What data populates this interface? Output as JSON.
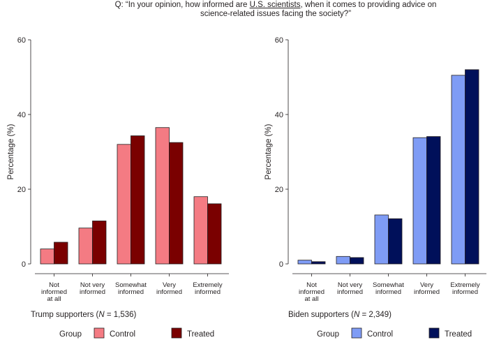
{
  "question": {
    "prefix": "Q: “In your opinion, how informed are ",
    "emphasis": "U.S. scientists",
    "suffix": ", when it comes to providing advice on science-related issues facing the society?”"
  },
  "legend": {
    "title": "Group",
    "control_label": "Control",
    "treated_label": "Treated"
  },
  "colors": {
    "trump_control": "#f47b83",
    "trump_treated": "#7a0000",
    "biden_control": "#7f9cf5",
    "biden_treated": "#00105a"
  },
  "chart_data": [
    {
      "type": "bar",
      "title": "",
      "xlabel_prefix": "Trump supporters (",
      "xlabel_n": "N",
      "xlabel_suffix": " = 1,536)",
      "ylabel": "Percentage (%)",
      "ylim": [
        0,
        60
      ],
      "yticks": [
        0,
        20,
        40,
        60
      ],
      "categories": [
        [
          "Not",
          "informed",
          "at all"
        ],
        [
          "Not very",
          "informed"
        ],
        [
          "Somewhat",
          "informed"
        ],
        [
          "Very",
          "informed"
        ],
        [
          "Extremely",
          "informed"
        ]
      ],
      "series": [
        {
          "name": "Control",
          "values": [
            4.0,
            9.6,
            32.0,
            36.5,
            18.0
          ]
        },
        {
          "name": "Treated",
          "values": [
            5.8,
            11.5,
            34.3,
            32.5,
            16.1
          ]
        }
      ]
    },
    {
      "type": "bar",
      "title": "",
      "xlabel_prefix": "Biden supporters (",
      "xlabel_n": "N",
      "xlabel_suffix": " = 2,349)",
      "ylabel": "Percentage (%)",
      "ylim": [
        0,
        60
      ],
      "yticks": [
        0,
        20,
        40,
        60
      ],
      "categories": [
        [
          "Not",
          "informed",
          "at all"
        ],
        [
          "Not very",
          "informed"
        ],
        [
          "Somewhat",
          "informed"
        ],
        [
          "Very",
          "informed"
        ],
        [
          "Extremely",
          "informed"
        ]
      ],
      "series": [
        {
          "name": "Control",
          "values": [
            1.0,
            2.0,
            13.1,
            33.8,
            50.5
          ]
        },
        {
          "name": "Treated",
          "values": [
            0.6,
            1.7,
            12.1,
            34.1,
            52.0
          ]
        }
      ]
    }
  ]
}
